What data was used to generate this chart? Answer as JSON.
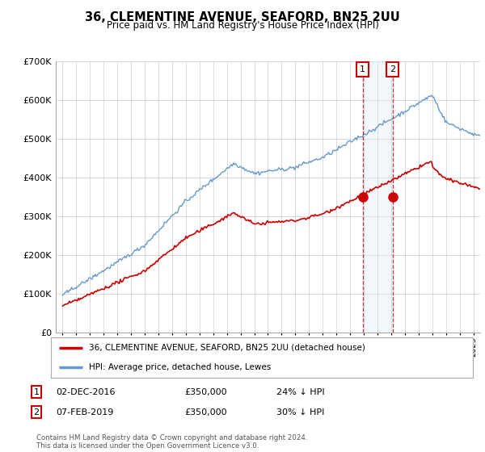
{
  "title": "36, CLEMENTINE AVENUE, SEAFORD, BN25 2UU",
  "subtitle": "Price paid vs. HM Land Registry's House Price Index (HPI)",
  "legend_line1": "36, CLEMENTINE AVENUE, SEAFORD, BN25 2UU (detached house)",
  "legend_line2": "HPI: Average price, detached house, Lewes",
  "point1_date": "02-DEC-2016",
  "point1_price": "£350,000",
  "point1_hpi": "24% ↓ HPI",
  "point1_year": 2016.92,
  "point2_date": "07-FEB-2019",
  "point2_price": "£350,000",
  "point2_hpi": "30% ↓ HPI",
  "point2_year": 2019.1,
  "footer": "Contains HM Land Registry data © Crown copyright and database right 2024.\nThis data is licensed under the Open Government Licence v3.0.",
  "red_color": "#cc0000",
  "blue_color": "#6699cc",
  "blue_shade": "#d0e4f5",
  "background_color": "#ffffff",
  "ylim_max": 700000,
  "xlim_start": 1994.5,
  "xlim_end": 2025.5
}
